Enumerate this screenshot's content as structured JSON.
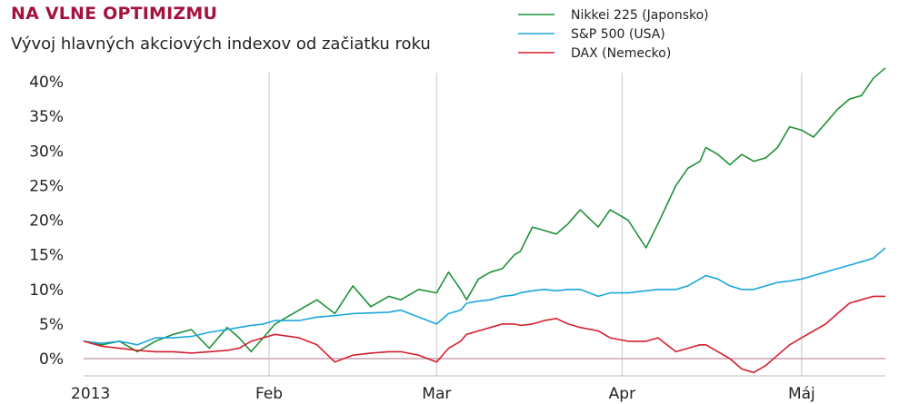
{
  "header": {
    "title": "NA VLNE OPTIMIZMU",
    "subtitle": "Vývoj hlavných akciových indexov od začiatku roku"
  },
  "chart_data": {
    "type": "line",
    "title": "NA VLNE OPTIMIZMU",
    "subtitle": "Vývoj hlavných akciových indexov od začiatku roku",
    "xlabel": "",
    "ylabel": "",
    "x_ticks": [
      "2013",
      "Feb",
      "Mar",
      "Apr",
      "Máj"
    ],
    "x_tick_day": [
      0,
      31,
      59,
      90,
      120
    ],
    "y_ticks": [
      "0%",
      "5%",
      "10%",
      "15%",
      "20%",
      "25%",
      "30%",
      "35%",
      "40%"
    ],
    "ylim": [
      -2,
      42
    ],
    "xlim": [
      0,
      134
    ],
    "grid": "vertical lines at month starts",
    "legend_placement": "top-right",
    "x_unit": "day of year 2013",
    "y_unit": "%",
    "series": [
      {
        "name": "Nikkei 225 (Japonsko)",
        "color": "#1f9138",
        "x": [
          0,
          3,
          6,
          9,
          12,
          15,
          18,
          21,
          24,
          26,
          28,
          30,
          32,
          36,
          39,
          42,
          45,
          48,
          51,
          53,
          56,
          59,
          61,
          63,
          64,
          66,
          68,
          70,
          72,
          73,
          75,
          77,
          79,
          81,
          83,
          86,
          88,
          91,
          94,
          96,
          99,
          101,
          103,
          104,
          106,
          108,
          110,
          112,
          114,
          116,
          118,
          120,
          122,
          124,
          126,
          128,
          130,
          132,
          134
        ],
        "y": [
          2.5,
          2.0,
          2.5,
          1.0,
          2.5,
          3.5,
          4.2,
          1.5,
          4.5,
          3.0,
          1.0,
          3.0,
          5.0,
          7.0,
          8.5,
          6.5,
          10.5,
          7.5,
          9.0,
          8.5,
          10.0,
          9.5,
          12.5,
          10.0,
          8.5,
          11.5,
          12.5,
          13.0,
          15.0,
          15.5,
          19.0,
          18.5,
          18.0,
          19.5,
          21.5,
          19.0,
          21.5,
          20.0,
          16.0,
          19.5,
          25.0,
          27.5,
          28.5,
          30.5,
          29.5,
          28.0,
          29.5,
          28.5,
          29.0,
          30.5,
          33.5,
          33.0,
          32.0,
          34.0,
          36.0,
          37.5,
          38.0,
          40.5,
          42.0
        ]
      },
      {
        "name": "S&P 500 (USA)",
        "color": "#1ba6db",
        "x": [
          0,
          3,
          6,
          9,
          12,
          15,
          18,
          21,
          24,
          26,
          28,
          30,
          32,
          36,
          39,
          42,
          45,
          48,
          51,
          53,
          56,
          59,
          61,
          63,
          64,
          66,
          68,
          70,
          72,
          73,
          75,
          77,
          79,
          81,
          83,
          86,
          88,
          91,
          94,
          96,
          99,
          101,
          103,
          104,
          106,
          108,
          110,
          112,
          114,
          116,
          118,
          120,
          122,
          124,
          126,
          128,
          130,
          132,
          134
        ],
        "y": [
          2.5,
          2.2,
          2.5,
          2.0,
          3.0,
          3.0,
          3.2,
          3.8,
          4.2,
          4.5,
          4.8,
          5.0,
          5.5,
          5.5,
          6.0,
          6.2,
          6.5,
          6.6,
          6.7,
          7.0,
          6.0,
          5.0,
          6.5,
          7.0,
          8.0,
          8.3,
          8.5,
          9.0,
          9.2,
          9.5,
          9.8,
          10.0,
          9.8,
          10.0,
          10.0,
          9.0,
          9.5,
          9.5,
          9.8,
          10.0,
          10.0,
          10.5,
          11.5,
          12.0,
          11.5,
          10.5,
          10.0,
          10.0,
          10.5,
          11.0,
          11.2,
          11.5,
          12.0,
          12.5,
          13.0,
          13.5,
          14.0,
          14.5,
          16.0
        ]
      },
      {
        "name": "DAX (Nemecko)",
        "color": "#d4202f",
        "x": [
          0,
          3,
          6,
          9,
          12,
          15,
          18,
          21,
          24,
          26,
          28,
          30,
          32,
          36,
          39,
          42,
          45,
          48,
          51,
          53,
          56,
          59,
          61,
          63,
          64,
          66,
          68,
          70,
          72,
          73,
          75,
          77,
          79,
          81,
          83,
          86,
          88,
          91,
          94,
          96,
          99,
          101,
          103,
          104,
          106,
          108,
          110,
          112,
          114,
          116,
          118,
          120,
          122,
          124,
          126,
          128,
          130,
          132,
          134
        ],
        "y": [
          2.5,
          1.8,
          1.5,
          1.2,
          1.0,
          1.0,
          0.8,
          1.0,
          1.2,
          1.5,
          2.5,
          3.0,
          3.5,
          3.0,
          2.0,
          -0.5,
          0.5,
          0.8,
          1.0,
          1.0,
          0.5,
          -0.5,
          1.5,
          2.5,
          3.5,
          4.0,
          4.5,
          5.0,
          5.0,
          4.8,
          5.0,
          5.5,
          5.8,
          5.0,
          4.5,
          4.0,
          3.0,
          2.5,
          2.5,
          3.0,
          1.0,
          1.5,
          2.0,
          2.0,
          1.0,
          0.0,
          -1.5,
          -2.0,
          -1.0,
          0.5,
          2.0,
          3.0,
          4.0,
          5.0,
          6.5,
          8.0,
          8.5,
          9.0,
          9.0
        ]
      }
    ]
  }
}
